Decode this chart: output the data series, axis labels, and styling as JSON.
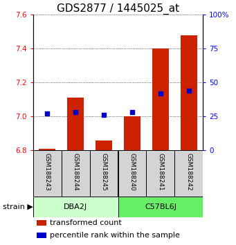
{
  "title": "GDS2877 / 1445025_at",
  "samples": [
    "GSM188243",
    "GSM188244",
    "GSM188245",
    "GSM188240",
    "GSM188241",
    "GSM188242"
  ],
  "transformed_counts": [
    6.81,
    7.11,
    6.86,
    7.0,
    7.4,
    7.48
  ],
  "percentile_ranks": [
    27,
    28,
    26,
    28,
    42,
    44
  ],
  "bar_base": 6.8,
  "ylim_left": [
    6.8,
    7.6
  ],
  "ylim_right": [
    0,
    100
  ],
  "yticks_left": [
    6.8,
    7.0,
    7.2,
    7.4,
    7.6
  ],
  "yticks_right": [
    0,
    25,
    50,
    75,
    100
  ],
  "yticklabels_right": [
    "0",
    "25",
    "50",
    "75",
    "100%"
  ],
  "bar_color": "#cc2200",
  "dot_color": "#0000cc",
  "bar_width": 0.6,
  "title_fontsize": 11,
  "tick_fontsize": 7.5,
  "label_fontsize": 8,
  "sample_fontsize": 6.5,
  "group_colors": [
    "#ccffcc",
    "#66ee66"
  ],
  "group_labels": [
    "DBA2J",
    "C57BL6J"
  ],
  "group_ranges": [
    [
      0,
      3
    ],
    [
      3,
      6
    ]
  ],
  "legend_items": [
    "transformed count",
    "percentile rank within the sample"
  ],
  "legend_colors": [
    "#cc2200",
    "#0000cc"
  ]
}
